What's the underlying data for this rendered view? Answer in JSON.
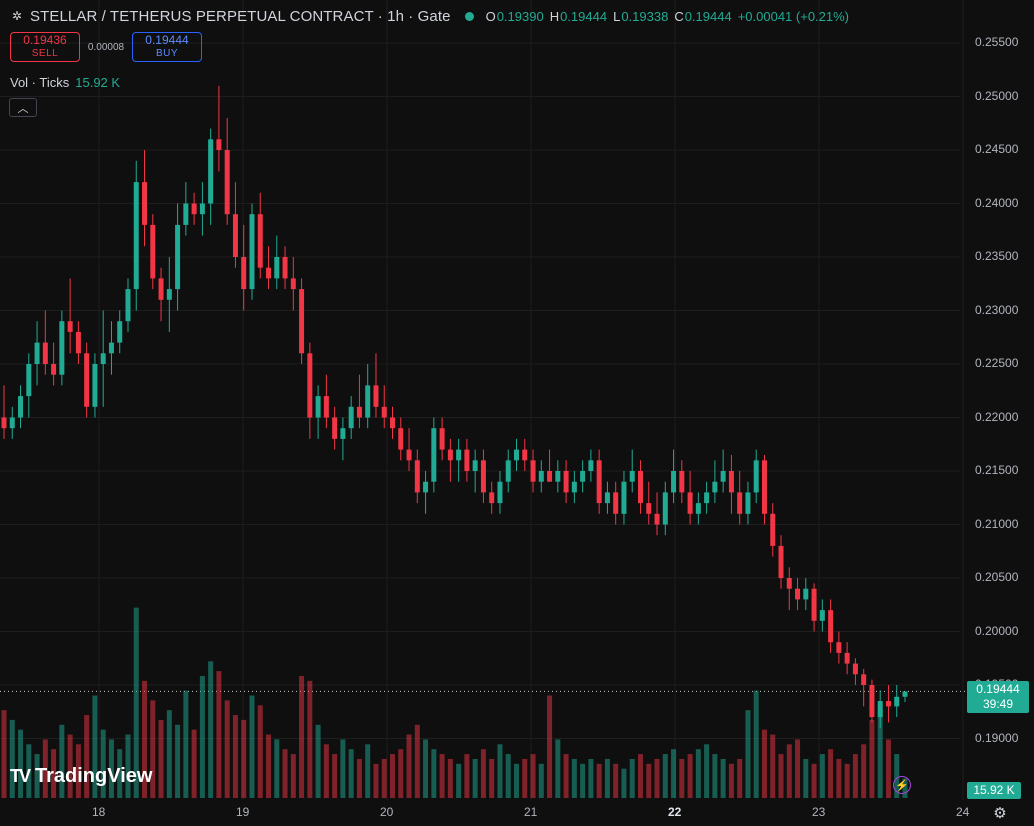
{
  "header": {
    "symbol_icon": "stellar-icon",
    "title": "STELLAR / TETHERUS PERPETUAL CONTRACT · 1h · Gate",
    "status_color": "#22ab94",
    "ohlc": {
      "o_key": "O",
      "o": "0.19390",
      "h_key": "H",
      "h": "0.19444",
      "l_key": "L",
      "l": "0.19338",
      "c_key": "C",
      "c": "0.19444",
      "change": "+0.00041 (+0.21%)"
    }
  },
  "trade": {
    "sell_price": "0.19436",
    "sell_label": "SELL",
    "spread": "0.00008",
    "buy_price": "0.19444",
    "buy_label": "BUY"
  },
  "volume_legend": {
    "label": "Vol · Ticks",
    "value": "15.92 K"
  },
  "collapse_icon": "chevron-up-icon",
  "logo": {
    "text": "TradingView",
    "mark": "TV"
  },
  "price_axis": {
    "labels": [
      "0.25500",
      "0.25000",
      "0.24500",
      "0.24000",
      "0.23500",
      "0.23000",
      "0.22500",
      "0.22000",
      "0.21500",
      "0.21000",
      "0.20500",
      "0.20000",
      "0.19500",
      "0.19000"
    ]
  },
  "time_axis": {
    "labels": [
      "18",
      "19",
      "20",
      "21",
      "22",
      "23",
      "24"
    ],
    "bold_label": "22"
  },
  "last_price_tag": {
    "price": "0.19444",
    "countdown": "39:49"
  },
  "volume_tag": "15.92 K",
  "icons": {
    "settings": "gear-icon",
    "alert": "lightning-icon"
  },
  "colors": {
    "up": "#22ab94",
    "down": "#f23645",
    "background": "#0f0f0f"
  },
  "chart_data": {
    "type": "candlestick",
    "timeframe": "1h",
    "ylim": [
      0.186,
      0.2575
    ],
    "grid": true,
    "candles": [
      [
        0.22,
        0.223,
        0.218,
        0.219
      ],
      [
        0.219,
        0.221,
        0.218,
        0.22
      ],
      [
        0.22,
        0.223,
        0.219,
        0.222
      ],
      [
        0.222,
        0.226,
        0.22,
        0.225
      ],
      [
        0.225,
        0.229,
        0.223,
        0.227
      ],
      [
        0.227,
        0.23,
        0.224,
        0.225
      ],
      [
        0.225,
        0.227,
        0.223,
        0.224
      ],
      [
        0.224,
        0.23,
        0.223,
        0.229
      ],
      [
        0.229,
        0.233,
        0.226,
        0.228
      ],
      [
        0.228,
        0.229,
        0.225,
        0.226
      ],
      [
        0.226,
        0.227,
        0.22,
        0.221
      ],
      [
        0.221,
        0.226,
        0.22,
        0.225
      ],
      [
        0.225,
        0.23,
        0.221,
        0.226
      ],
      [
        0.226,
        0.229,
        0.224,
        0.227
      ],
      [
        0.227,
        0.23,
        0.226,
        0.229
      ],
      [
        0.229,
        0.233,
        0.228,
        0.232
      ],
      [
        0.232,
        0.244,
        0.23,
        0.242
      ],
      [
        0.242,
        0.245,
        0.236,
        0.238
      ],
      [
        0.238,
        0.239,
        0.232,
        0.233
      ],
      [
        0.233,
        0.234,
        0.229,
        0.231
      ],
      [
        0.231,
        0.235,
        0.228,
        0.232
      ],
      [
        0.232,
        0.24,
        0.23,
        0.238
      ],
      [
        0.238,
        0.242,
        0.237,
        0.24
      ],
      [
        0.24,
        0.241,
        0.238,
        0.239
      ],
      [
        0.239,
        0.242,
        0.237,
        0.24
      ],
      [
        0.24,
        0.247,
        0.238,
        0.246
      ],
      [
        0.246,
        0.251,
        0.243,
        0.245
      ],
      [
        0.245,
        0.248,
        0.238,
        0.239
      ],
      [
        0.239,
        0.242,
        0.234,
        0.235
      ],
      [
        0.235,
        0.238,
        0.23,
        0.232
      ],
      [
        0.232,
        0.24,
        0.231,
        0.239
      ],
      [
        0.239,
        0.241,
        0.233,
        0.234
      ],
      [
        0.234,
        0.236,
        0.232,
        0.233
      ],
      [
        0.233,
        0.237,
        0.232,
        0.235
      ],
      [
        0.235,
        0.236,
        0.232,
        0.233
      ],
      [
        0.233,
        0.235,
        0.23,
        0.232
      ],
      [
        0.232,
        0.233,
        0.225,
        0.226
      ],
      [
        0.226,
        0.227,
        0.218,
        0.22
      ],
      [
        0.22,
        0.223,
        0.218,
        0.222
      ],
      [
        0.222,
        0.224,
        0.219,
        0.22
      ],
      [
        0.22,
        0.221,
        0.217,
        0.218
      ],
      [
        0.218,
        0.22,
        0.216,
        0.219
      ],
      [
        0.219,
        0.222,
        0.218,
        0.221
      ],
      [
        0.221,
        0.224,
        0.219,
        0.22
      ],
      [
        0.22,
        0.225,
        0.219,
        0.223
      ],
      [
        0.223,
        0.226,
        0.22,
        0.221
      ],
      [
        0.221,
        0.223,
        0.219,
        0.22
      ],
      [
        0.22,
        0.221,
        0.218,
        0.219
      ],
      [
        0.219,
        0.22,
        0.216,
        0.217
      ],
      [
        0.217,
        0.219,
        0.215,
        0.216
      ],
      [
        0.216,
        0.217,
        0.212,
        0.213
      ],
      [
        0.213,
        0.215,
        0.211,
        0.214
      ],
      [
        0.214,
        0.22,
        0.213,
        0.219
      ],
      [
        0.219,
        0.22,
        0.216,
        0.217
      ],
      [
        0.217,
        0.218,
        0.214,
        0.216
      ],
      [
        0.216,
        0.218,
        0.214,
        0.217
      ],
      [
        0.217,
        0.218,
        0.214,
        0.215
      ],
      [
        0.215,
        0.217,
        0.213,
        0.216
      ],
      [
        0.216,
        0.217,
        0.212,
        0.213
      ],
      [
        0.213,
        0.214,
        0.211,
        0.212
      ],
      [
        0.212,
        0.215,
        0.211,
        0.214
      ],
      [
        0.214,
        0.217,
        0.213,
        0.216
      ],
      [
        0.216,
        0.218,
        0.215,
        0.217
      ],
      [
        0.217,
        0.218,
        0.215,
        0.216
      ],
      [
        0.216,
        0.217,
        0.213,
        0.214
      ],
      [
        0.214,
        0.216,
        0.213,
        0.215
      ],
      [
        0.215,
        0.217,
        0.214,
        0.214
      ],
      [
        0.214,
        0.216,
        0.213,
        0.215
      ],
      [
        0.215,
        0.216,
        0.212,
        0.213
      ],
      [
        0.213,
        0.215,
        0.212,
        0.214
      ],
      [
        0.214,
        0.216,
        0.213,
        0.215
      ],
      [
        0.215,
        0.217,
        0.214,
        0.216
      ],
      [
        0.216,
        0.217,
        0.211,
        0.212
      ],
      [
        0.212,
        0.214,
        0.211,
        0.213
      ],
      [
        0.213,
        0.214,
        0.21,
        0.211
      ],
      [
        0.211,
        0.215,
        0.21,
        0.214
      ],
      [
        0.214,
        0.217,
        0.213,
        0.215
      ],
      [
        0.215,
        0.216,
        0.211,
        0.212
      ],
      [
        0.212,
        0.214,
        0.21,
        0.211
      ],
      [
        0.211,
        0.213,
        0.209,
        0.21
      ],
      [
        0.21,
        0.214,
        0.209,
        0.213
      ],
      [
        0.213,
        0.217,
        0.212,
        0.215
      ],
      [
        0.215,
        0.216,
        0.212,
        0.213
      ],
      [
        0.213,
        0.215,
        0.21,
        0.211
      ],
      [
        0.211,
        0.213,
        0.21,
        0.212
      ],
      [
        0.212,
        0.214,
        0.211,
        0.213
      ],
      [
        0.213,
        0.216,
        0.212,
        0.214
      ],
      [
        0.214,
        0.217,
        0.213,
        0.215
      ],
      [
        0.215,
        0.2165,
        0.211,
        0.213
      ],
      [
        0.213,
        0.215,
        0.21,
        0.211
      ],
      [
        0.211,
        0.214,
        0.21,
        0.213
      ],
      [
        0.213,
        0.217,
        0.212,
        0.216
      ],
      [
        0.216,
        0.2165,
        0.21,
        0.211
      ],
      [
        0.211,
        0.212,
        0.207,
        0.208
      ],
      [
        0.208,
        0.209,
        0.204,
        0.205
      ],
      [
        0.205,
        0.206,
        0.202,
        0.204
      ],
      [
        0.204,
        0.205,
        0.202,
        0.203
      ],
      [
        0.203,
        0.205,
        0.202,
        0.204
      ],
      [
        0.204,
        0.2045,
        0.2,
        0.201
      ],
      [
        0.201,
        0.203,
        0.2,
        0.202
      ],
      [
        0.202,
        0.203,
        0.198,
        0.199
      ],
      [
        0.199,
        0.2,
        0.197,
        0.198
      ],
      [
        0.198,
        0.199,
        0.196,
        0.197
      ],
      [
        0.197,
        0.1975,
        0.195,
        0.196
      ],
      [
        0.196,
        0.1965,
        0.193,
        0.195
      ],
      [
        0.195,
        0.1955,
        0.1915,
        0.192
      ],
      [
        0.192,
        0.1945,
        0.191,
        0.1935
      ],
      [
        0.1935,
        0.195,
        0.1915,
        0.193
      ],
      [
        0.193,
        0.195,
        0.192,
        0.1939
      ],
      [
        0.1939,
        0.1944,
        0.1934,
        0.1944
      ]
    ],
    "volume": [
      1.8,
      1.6,
      1.4,
      1.1,
      0.9,
      1.2,
      1.0,
      1.5,
      1.3,
      1.1,
      1.7,
      2.1,
      1.4,
      1.2,
      1.0,
      1.3,
      3.9,
      2.4,
      2.0,
      1.6,
      1.8,
      1.5,
      2.2,
      1.4,
      2.5,
      2.8,
      2.6,
      2.0,
      1.7,
      1.6,
      2.1,
      1.9,
      1.3,
      1.2,
      1.0,
      0.9,
      2.5,
      2.4,
      1.5,
      1.1,
      0.9,
      1.2,
      1.0,
      0.8,
      1.1,
      0.7,
      0.8,
      0.9,
      1.0,
      1.3,
      1.5,
      1.2,
      1.0,
      0.9,
      0.8,
      0.7,
      0.9,
      0.8,
      1.0,
      0.8,
      1.1,
      0.9,
      0.7,
      0.8,
      0.9,
      0.7,
      2.1,
      1.2,
      0.9,
      0.8,
      0.7,
      0.8,
      0.7,
      0.8,
      0.7,
      0.6,
      0.8,
      0.9,
      0.7,
      0.8,
      0.9,
      1.0,
      0.8,
      0.9,
      1.0,
      1.1,
      0.9,
      0.8,
      0.7,
      0.8,
      1.8,
      2.2,
      1.4,
      1.3,
      0.9,
      1.1,
      1.2,
      0.8,
      0.7,
      0.9,
      1.0,
      0.8,
      0.7,
      0.9,
      1.1,
      1.6,
      1.8,
      1.2,
      0.9,
      0.4
    ],
    "volume_max": 4.2
  }
}
